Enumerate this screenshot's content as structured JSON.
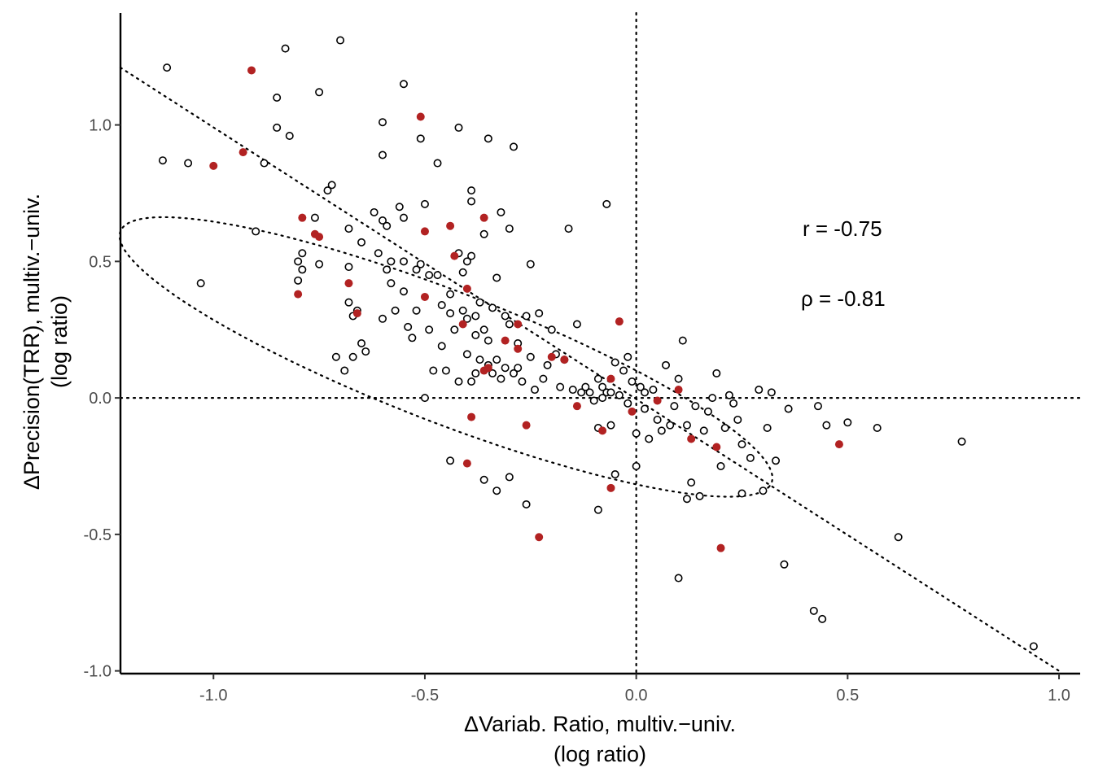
{
  "chart_data": {
    "type": "scatter",
    "title": "",
    "xlabel": [
      "ΔVariab. Ratio, multiv.−univ.",
      "(log ratio)"
    ],
    "ylabel": [
      "ΔPrecision(TRR), multiv.−univ.",
      "(log ratio)"
    ],
    "xlim": [
      -1.22,
      1.05
    ],
    "ylim": [
      -1.01,
      1.41
    ],
    "x_ticks": [
      -1.0,
      -0.5,
      0.0,
      0.5,
      1.0
    ],
    "x_tick_labels": [
      "-1.0",
      "-0.5",
      "0.0",
      "0.5",
      "1.0"
    ],
    "y_ticks": [
      -1.0,
      -0.5,
      0.0,
      0.5,
      1.0
    ],
    "y_tick_labels": [
      "-1.0",
      "-0.5",
      "0.0",
      "0.5",
      "1.0"
    ],
    "grid": false,
    "annotations": [
      "r = -0.75",
      "ρ = -0.81"
    ],
    "reference_lines": {
      "vertical_x": 0,
      "horizontal_y": 0,
      "style": "dotted"
    },
    "regression_line": {
      "style": "dotted",
      "from": [
        -1.22,
        1.21
      ],
      "to": [
        1.0,
        -1.0
      ]
    },
    "ellipse": {
      "style": "dotted",
      "center": [
        -0.45,
        0.15
      ],
      "radius_major": 0.9,
      "radius_minor": 0.22,
      "angle_deg": -32
    },
    "colors": {
      "open": "#000000",
      "highlight": "#b22222"
    },
    "series": [
      {
        "marker": "open-circle",
        "points": [
          [
            -1.11,
            1.21
          ],
          [
            -1.12,
            0.87
          ],
          [
            -1.06,
            0.86
          ],
          [
            -1.03,
            0.42
          ],
          [
            -0.9,
            0.61
          ],
          [
            -0.88,
            0.86
          ],
          [
            -0.85,
            0.99
          ],
          [
            -0.85,
            1.1
          ],
          [
            -0.83,
            1.28
          ],
          [
            -0.82,
            0.96
          ],
          [
            -0.8,
            0.5
          ],
          [
            -0.8,
            0.43
          ],
          [
            -0.79,
            0.53
          ],
          [
            -0.79,
            0.47
          ],
          [
            -0.76,
            0.66
          ],
          [
            -0.75,
            1.12
          ],
          [
            -0.75,
            0.49
          ],
          [
            -0.73,
            0.76
          ],
          [
            -0.72,
            0.78
          ],
          [
            -0.71,
            0.15
          ],
          [
            -0.7,
            1.31
          ],
          [
            -0.69,
            0.1
          ],
          [
            -0.68,
            0.62
          ],
          [
            -0.68,
            0.48
          ],
          [
            -0.68,
            0.35
          ],
          [
            -0.67,
            0.3
          ],
          [
            -0.67,
            0.15
          ],
          [
            -0.66,
            0.32
          ],
          [
            -0.65,
            0.57
          ],
          [
            -0.65,
            0.2
          ],
          [
            -0.64,
            0.17
          ],
          [
            -0.62,
            0.68
          ],
          [
            -0.61,
            0.53
          ],
          [
            -0.6,
            1.01
          ],
          [
            -0.6,
            0.89
          ],
          [
            -0.6,
            0.65
          ],
          [
            -0.6,
            0.29
          ],
          [
            -0.59,
            0.63
          ],
          [
            -0.59,
            0.47
          ],
          [
            -0.58,
            0.5
          ],
          [
            -0.58,
            0.42
          ],
          [
            -0.57,
            0.32
          ],
          [
            -0.56,
            0.7
          ],
          [
            -0.55,
            1.15
          ],
          [
            -0.55,
            0.66
          ],
          [
            -0.55,
            0.5
          ],
          [
            -0.55,
            0.39
          ],
          [
            -0.54,
            0.26
          ],
          [
            -0.53,
            0.22
          ],
          [
            -0.52,
            0.47
          ],
          [
            -0.52,
            0.32
          ],
          [
            -0.51,
            0.95
          ],
          [
            -0.51,
            0.49
          ],
          [
            -0.5,
            0.71
          ],
          [
            -0.49,
            0.45
          ],
          [
            -0.49,
            0.25
          ],
          [
            -0.48,
            0.1
          ],
          [
            -0.47,
            0.86
          ],
          [
            -0.47,
            0.45
          ],
          [
            -0.46,
            0.34
          ],
          [
            -0.46,
            0.19
          ],
          [
            -0.45,
            0.1
          ],
          [
            -0.44,
            0.38
          ],
          [
            -0.44,
            0.31
          ],
          [
            -0.43,
            0.25
          ],
          [
            -0.42,
            0.99
          ],
          [
            -0.42,
            0.53
          ],
          [
            -0.42,
            0.06
          ],
          [
            -0.41,
            0.46
          ],
          [
            -0.41,
            0.32
          ],
          [
            -0.4,
            0.5
          ],
          [
            -0.4,
            0.29
          ],
          [
            -0.4,
            0.16
          ],
          [
            -0.39,
            0.76
          ],
          [
            -0.39,
            0.72
          ],
          [
            -0.39,
            0.52
          ],
          [
            -0.39,
            0.06
          ],
          [
            -0.38,
            0.09
          ],
          [
            -0.38,
            0.3
          ],
          [
            -0.38,
            0.23
          ],
          [
            -0.37,
            0.14
          ],
          [
            -0.37,
            0.35
          ],
          [
            -0.36,
            0.6
          ],
          [
            -0.36,
            0.25
          ],
          [
            -0.35,
            0.95
          ],
          [
            -0.35,
            0.21
          ],
          [
            -0.35,
            0.12
          ],
          [
            -0.34,
            0.09
          ],
          [
            -0.34,
            0.33
          ],
          [
            -0.33,
            0.44
          ],
          [
            -0.33,
            0.14
          ],
          [
            -0.32,
            0.68
          ],
          [
            -0.32,
            0.07
          ],
          [
            -0.31,
            0.11
          ],
          [
            -0.31,
            0.3
          ],
          [
            -0.3,
            0.27
          ],
          [
            -0.3,
            0.62
          ],
          [
            -0.29,
            0.92
          ],
          [
            -0.29,
            0.09
          ],
          [
            -0.28,
            0.2
          ],
          [
            -0.28,
            0.11
          ],
          [
            -0.27,
            0.06
          ],
          [
            -0.26,
            0.3
          ],
          [
            -0.25,
            0.49
          ],
          [
            -0.25,
            0.15
          ],
          [
            -0.24,
            0.03
          ],
          [
            -0.23,
            0.31
          ],
          [
            -0.22,
            0.07
          ],
          [
            -0.21,
            0.12
          ],
          [
            -0.2,
            0.25
          ],
          [
            -0.19,
            0.16
          ],
          [
            -0.18,
            0.04
          ],
          [
            -0.17,
            0.14
          ],
          [
            -0.16,
            0.62
          ],
          [
            -0.15,
            0.03
          ],
          [
            -0.14,
            0.27
          ],
          [
            -0.13,
            0.02
          ],
          [
            -0.12,
            0.04
          ],
          [
            -0.11,
            0.02
          ],
          [
            -0.1,
            -0.01
          ],
          [
            -0.09,
            0.07
          ],
          [
            -0.09,
            -0.11
          ],
          [
            -0.08,
            0.04
          ],
          [
            -0.08,
            0.0
          ],
          [
            -0.07,
            0.71
          ],
          [
            -0.07,
            0.02
          ],
          [
            -0.06,
            -0.1
          ],
          [
            -0.06,
            0.02
          ],
          [
            -0.05,
            -0.28
          ],
          [
            -0.05,
            0.13
          ],
          [
            -0.04,
            0.01
          ],
          [
            -0.03,
            0.1
          ],
          [
            -0.02,
            0.15
          ],
          [
            -0.02,
            -0.02
          ],
          [
            -0.01,
            0.06
          ],
          [
            0.0,
            -0.25
          ],
          [
            0.0,
            -0.13
          ],
          [
            0.01,
            0.04
          ],
          [
            0.02,
            0.02
          ],
          [
            0.02,
            -0.04
          ],
          [
            0.03,
            -0.15
          ],
          [
            0.04,
            0.03
          ],
          [
            0.05,
            -0.08
          ],
          [
            0.06,
            -0.12
          ],
          [
            0.07,
            0.12
          ],
          [
            0.08,
            -0.1
          ],
          [
            0.09,
            -0.03
          ],
          [
            0.1,
            -0.66
          ],
          [
            0.1,
            0.07
          ],
          [
            0.11,
            0.21
          ],
          [
            0.12,
            -0.37
          ],
          [
            0.12,
            -0.1
          ],
          [
            0.13,
            -0.31
          ],
          [
            0.14,
            -0.03
          ],
          [
            0.15,
            -0.36
          ],
          [
            0.16,
            -0.12
          ],
          [
            0.17,
            -0.05
          ],
          [
            0.18,
            0.0
          ],
          [
            0.19,
            0.09
          ],
          [
            0.2,
            -0.25
          ],
          [
            0.21,
            -0.11
          ],
          [
            0.22,
            0.01
          ],
          [
            0.23,
            -0.02
          ],
          [
            0.24,
            -0.08
          ],
          [
            0.25,
            -0.35
          ],
          [
            0.25,
            -0.17
          ],
          [
            0.27,
            -0.22
          ],
          [
            0.29,
            0.03
          ],
          [
            0.3,
            -0.34
          ],
          [
            0.31,
            -0.11
          ],
          [
            0.32,
            0.02
          ],
          [
            0.33,
            -0.23
          ],
          [
            0.35,
            -0.61
          ],
          [
            0.36,
            -0.04
          ],
          [
            0.42,
            -0.78
          ],
          [
            0.43,
            -0.03
          ],
          [
            0.44,
            -0.81
          ],
          [
            0.45,
            -0.1
          ],
          [
            0.5,
            -0.09
          ],
          [
            0.57,
            -0.11
          ],
          [
            0.62,
            -0.51
          ],
          [
            0.77,
            -0.16
          ],
          [
            0.94,
            -0.91
          ],
          [
            -0.5,
            0.0
          ],
          [
            -0.44,
            -0.23
          ],
          [
            -0.36,
            -0.3
          ],
          [
            -0.33,
            -0.34
          ],
          [
            -0.3,
            -0.29
          ],
          [
            -0.26,
            -0.39
          ],
          [
            -0.09,
            -0.41
          ]
        ]
      },
      {
        "marker": "filled-circle",
        "color": "#b22222",
        "points": [
          [
            -0.91,
            1.2
          ],
          [
            -1.0,
            0.85
          ],
          [
            -0.93,
            0.9
          ],
          [
            -0.79,
            0.66
          ],
          [
            -0.76,
            0.6
          ],
          [
            -0.75,
            0.59
          ],
          [
            -0.8,
            0.38
          ],
          [
            -0.68,
            0.42
          ],
          [
            -0.66,
            0.31
          ],
          [
            -0.51,
            1.03
          ],
          [
            -0.5,
            0.61
          ],
          [
            -0.5,
            0.37
          ],
          [
            -0.44,
            0.63
          ],
          [
            -0.43,
            0.52
          ],
          [
            -0.4,
            0.4
          ],
          [
            -0.41,
            0.27
          ],
          [
            -0.36,
            0.66
          ],
          [
            -0.36,
            0.1
          ],
          [
            -0.35,
            0.11
          ],
          [
            -0.31,
            0.21
          ],
          [
            -0.28,
            0.27
          ],
          [
            -0.28,
            0.18
          ],
          [
            -0.2,
            0.15
          ],
          [
            -0.17,
            0.14
          ],
          [
            -0.14,
            -0.03
          ],
          [
            -0.04,
            0.28
          ],
          [
            -0.06,
            0.07
          ],
          [
            -0.08,
            -0.12
          ],
          [
            -0.01,
            -0.05
          ],
          [
            -0.06,
            -0.33
          ],
          [
            -0.39,
            -0.07
          ],
          [
            -0.26,
            -0.1
          ],
          [
            -0.4,
            -0.24
          ],
          [
            -0.23,
            -0.51
          ],
          [
            0.05,
            -0.01
          ],
          [
            0.1,
            0.03
          ],
          [
            0.13,
            -0.15
          ],
          [
            0.19,
            -0.18
          ],
          [
            0.2,
            -0.55
          ],
          [
            0.48,
            -0.17
          ]
        ]
      }
    ]
  }
}
